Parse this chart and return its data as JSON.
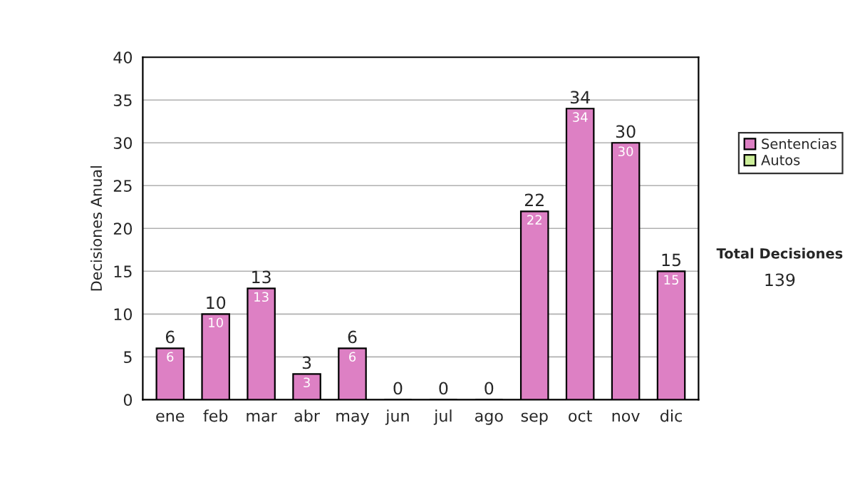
{
  "chart_data": {
    "type": "bar",
    "stacked": true,
    "categories": [
      "ene",
      "feb",
      "mar",
      "abr",
      "may",
      "jun",
      "jul",
      "ago",
      "sep",
      "oct",
      "nov",
      "dic"
    ],
    "series": [
      {
        "name": "Sentencias",
        "color": "#dd80c4",
        "values": [
          6,
          10,
          13,
          3,
          6,
          0,
          0,
          0,
          22,
          34,
          30,
          15
        ],
        "value_labels": [
          "6",
          "10",
          "13",
          "3",
          "6",
          null,
          null,
          null,
          "22",
          "34",
          "30",
          "15"
        ]
      },
      {
        "name": "Autos",
        "color": "#ccee99",
        "values": [
          null,
          null,
          null,
          null,
          null,
          null,
          null,
          null,
          null,
          null,
          null,
          null
        ]
      }
    ],
    "totals": [
      "6",
      "10",
      "13",
      "3",
      "6",
      "0",
      "0",
      "0",
      "22",
      "34",
      "30",
      "15"
    ],
    "ylabel": "Decisiones Anual",
    "ylim": [
      0,
      40
    ],
    "yticks": [
      0,
      5,
      10,
      15,
      20,
      25,
      30,
      35,
      40
    ],
    "grid": "y",
    "legend": "right",
    "annotations": [
      "Total Decisiones",
      "139"
    ]
  }
}
